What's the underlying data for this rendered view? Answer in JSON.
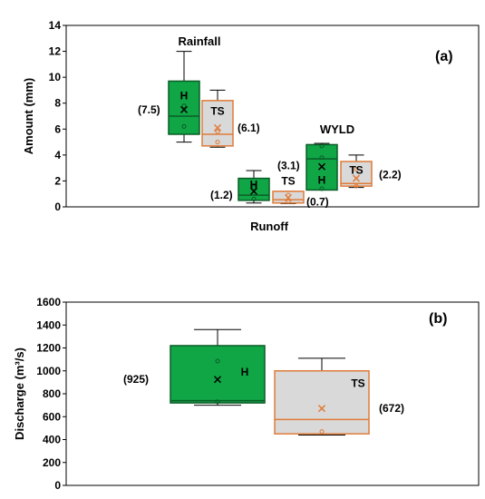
{
  "colors": {
    "historical_fill": "#10a646",
    "historical_edge": "#0a5c26",
    "ts_fill": "#d9d9d9",
    "ts_edge": "#e07b39",
    "whisker": "#000000"
  },
  "chart_data": [
    {
      "panel": "(a)",
      "type": "box",
      "ylabel": "Amount (mm)",
      "xlabel": "Runoff",
      "ylim": [
        0,
        14
      ],
      "yticks": [
        0,
        2,
        4,
        6,
        8,
        10,
        12,
        14
      ],
      "grid": false,
      "groups": [
        {
          "name": "Rainfall",
          "boxes": [
            {
              "label": "H",
              "series": "historical",
              "min": 5.0,
              "q1": 5.6,
              "median": 7.0,
              "q3": 9.7,
              "max": 12.0,
              "mean": 7.5,
              "points": [
                6.2,
                7.8
              ],
              "mean_label": "(7.5)"
            },
            {
              "label": "TS",
              "series": "ts",
              "min": 4.6,
              "q1": 4.7,
              "median": 5.6,
              "q3": 8.2,
              "max": 9.0,
              "mean": 6.1,
              "points": [
                5.0,
                5.8
              ],
              "mean_label": "(6.1)"
            }
          ]
        },
        {
          "name": "",
          "boxes": [
            {
              "label": "H",
              "series": "historical",
              "min": 0.3,
              "q1": 0.5,
              "median": 0.9,
              "q3": 2.2,
              "max": 2.8,
              "mean": 1.2,
              "points": [
                0.6,
                1.5
              ],
              "mean_label": "(1.2)"
            },
            {
              "label": "TS",
              "series": "ts",
              "min": 0.25,
              "q1": 0.3,
              "median": 0.55,
              "q3": 1.2,
              "max": 1.2,
              "mean": 0.7,
              "points": [
                0.4,
                0.9
              ],
              "mean_label": "(0.7)"
            }
          ]
        },
        {
          "name": "WYLD",
          "boxes": [
            {
              "label": "H",
              "series": "historical",
              "min": 1.3,
              "q1": 1.3,
              "median": 3.7,
              "q3": 4.8,
              "max": 4.9,
              "mean": 3.1,
              "points": [
                1.4,
                3.8,
                4.7
              ],
              "mean_label": "(3.1)"
            },
            {
              "label": "TS",
              "series": "ts",
              "min": 1.5,
              "q1": 1.6,
              "median": 1.8,
              "q3": 3.5,
              "max": 4.0,
              "mean": 2.2,
              "points": [
                1.6,
                2.9
              ],
              "mean_label": "(2.2)"
            }
          ]
        }
      ]
    },
    {
      "panel": "(b)",
      "type": "box",
      "ylabel": "Discharge (m³/s)",
      "ylim": [
        0,
        1600
      ],
      "yticks": [
        0,
        200,
        400,
        600,
        800,
        1000,
        1200,
        1400,
        1600
      ],
      "grid": false,
      "boxes": [
        {
          "label": "H",
          "series": "historical",
          "min": 700,
          "q1": 720,
          "median": 740,
          "q3": 1220,
          "max": 1360,
          "mean": 925,
          "points": [
            730,
            1085
          ],
          "mean_label": "(925)"
        },
        {
          "label": "TS",
          "series": "ts",
          "min": 440,
          "q1": 450,
          "median": 575,
          "q3": 1000,
          "max": 1110,
          "mean": 672,
          "points": [
            470
          ],
          "mean_label": "(672)"
        }
      ]
    }
  ]
}
